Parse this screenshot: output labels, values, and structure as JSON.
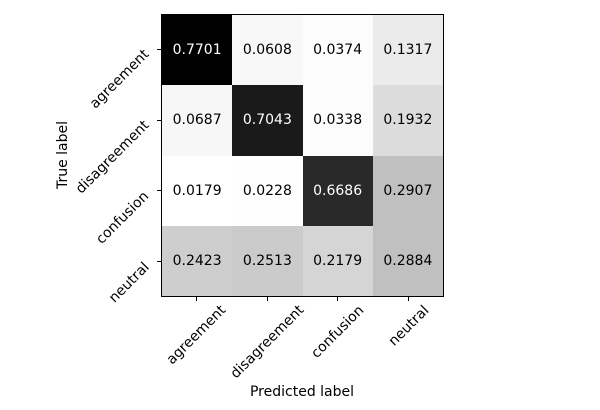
{
  "figure": {
    "background_color": "#ffffff",
    "axis_line_color": "#000000"
  },
  "chart_data": {
    "type": "heatmap",
    "title": "",
    "xlabel": "Predicted label",
    "ylabel": "True label",
    "categories": [
      "agreement",
      "disagreement",
      "confusion",
      "neutral"
    ],
    "x_tick_labels": [
      "agreement",
      "disagreement",
      "confusion",
      "neutral"
    ],
    "y_tick_labels": [
      "agreement",
      "disagreement",
      "confusion",
      "neutral"
    ],
    "matrix": [
      [
        0.7701,
        0.0608,
        0.0374,
        0.1317
      ],
      [
        0.0687,
        0.7043,
        0.0338,
        0.1932
      ],
      [
        0.0179,
        0.0228,
        0.6686,
        0.2907
      ],
      [
        0.2423,
        0.2513,
        0.2179,
        0.2884
      ]
    ],
    "value_decimals": 4,
    "colormap": "Greys",
    "color_scale": {
      "vmin": 0.0179,
      "vmax": 0.7701
    },
    "cell_text_color_dark_bg": "#ffffff",
    "cell_text_color_light_bg": "#000000",
    "tick_label_rotation_deg": 45,
    "grid": false,
    "legend": "none"
  }
}
